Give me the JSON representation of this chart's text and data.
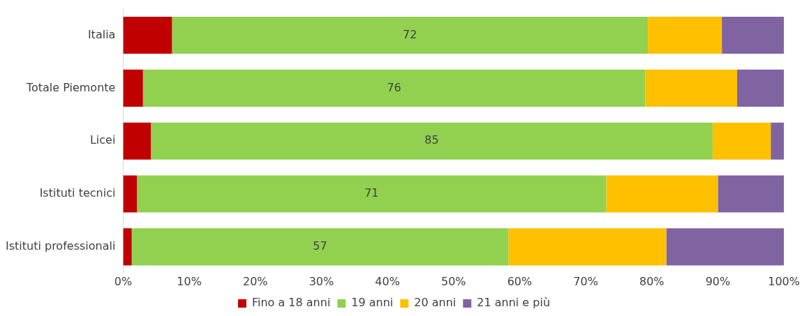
{
  "chart_data": {
    "type": "bar",
    "orientation": "horizontal",
    "stacked": true,
    "categories": [
      "Italia",
      "Totale Piemonte",
      "Licei",
      "Istituti tecnici",
      "Istituti professionali"
    ],
    "series": [
      {
        "name": "Fino a 18 anni",
        "color": "#c00000",
        "values": [
          7.4,
          3.0,
          4.2,
          2.1,
          1.3
        ]
      },
      {
        "name": "19 anni",
        "color": "#92d050",
        "values": [
          72,
          76,
          85,
          71,
          57
        ],
        "value_labels": [
          "72",
          "76",
          "85",
          "71",
          "57"
        ]
      },
      {
        "name": "20 anni",
        "color": "#ffc000",
        "values": [
          11.2,
          13.9,
          8.8,
          16.9,
          23.9
        ]
      },
      {
        "name": "21 anni e più",
        "color": "#8064a2",
        "values": [
          9.4,
          7.1,
          2.0,
          10.0,
          17.8
        ]
      }
    ],
    "xlim": [
      0,
      100
    ],
    "xticks": [
      {
        "value": 0,
        "label": "0%"
      },
      {
        "value": 10,
        "label": "10%"
      },
      {
        "value": 20,
        "label": "20%"
      },
      {
        "value": 30,
        "label": "30%"
      },
      {
        "value": 40,
        "label": "40%"
      },
      {
        "value": 50,
        "label": "50%"
      },
      {
        "value": 60,
        "label": "60%"
      },
      {
        "value": 70,
        "label": "70%"
      },
      {
        "value": 80,
        "label": "80%"
      },
      {
        "value": 90,
        "label": "90%"
      },
      {
        "value": 100,
        "label": "100%"
      }
    ],
    "grid": false,
    "legend": "bottom"
  }
}
